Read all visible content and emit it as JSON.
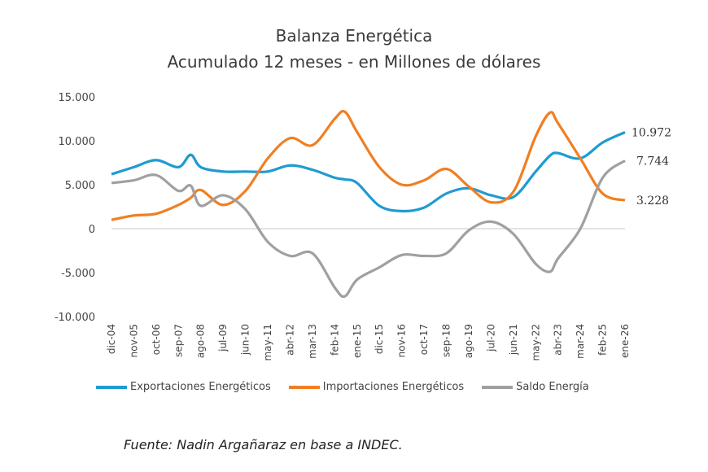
{
  "chart_data": {
    "type": "line",
    "title": "Balanza Energética",
    "subtitle": "Acumulado 12 meses - en Millones de dólares",
    "ylim": [
      -10000,
      15000
    ],
    "yticks": [
      15000,
      10000,
      5000,
      0,
      -5000,
      -10000
    ],
    "ytick_labels": [
      "15.000",
      "10.000",
      "5.000",
      "0",
      "-5.000",
      "-10.000"
    ],
    "xtick_dates": [
      "2004-12",
      "2005-11",
      "2006-10",
      "2007-09",
      "2008-08",
      "2009-07",
      "2010-06",
      "2011-05",
      "2012-04",
      "2013-03",
      "2014-02",
      "2015-01",
      "2015-12",
      "2016-11",
      "2017-10",
      "2018-09",
      "2019-08",
      "2020-07",
      "2021-06",
      "2022-05",
      "2023-04",
      "2024-03",
      "2025-02",
      "2026-01"
    ],
    "xtick_labels": [
      "dic-04",
      "nov-05",
      "oct-06",
      "sep-07",
      "ago-08",
      "jul-09",
      "jun-10",
      "may-11",
      "abr-12",
      "mar-13",
      "feb-14",
      "ene-15",
      "dic-15",
      "nov-16",
      "oct-17",
      "sep-18",
      "ago-19",
      "jul-20",
      "jun-21",
      "may-22",
      "abr-23",
      "mar-24",
      "feb-25",
      "ene-26"
    ],
    "grid": false,
    "legend": "bottom",
    "x": [
      "2004-12",
      "2005-11",
      "2006-10",
      "2007-09",
      "2008-03",
      "2008-08",
      "2009-07",
      "2010-06",
      "2011-05",
      "2012-04",
      "2013-03",
      "2014-02",
      "2014-07",
      "2015-01",
      "2015-12",
      "2016-11",
      "2017-10",
      "2018-09",
      "2019-08",
      "2020-07",
      "2021-06",
      "2022-05",
      "2022-12",
      "2023-04",
      "2024-03",
      "2025-02",
      "2026-01"
    ],
    "series": [
      {
        "name": "Exportaciones Energéticos",
        "color": "#1f9bd1",
        "end_label": "10.972",
        "values": [
          6200,
          7000,
          7800,
          7000,
          8400,
          7000,
          6500,
          6500,
          6500,
          7200,
          6700,
          5800,
          5600,
          5200,
          2600,
          2000,
          2400,
          4000,
          4600,
          3800,
          3600,
          6500,
          8300,
          8600,
          8000,
          9800,
          10972
        ]
      },
      {
        "name": "Importaciones Energéticos",
        "color": "#f07f22",
        "end_label": "3.228",
        "values": [
          1000,
          1500,
          1700,
          2700,
          3500,
          4400,
          2700,
          4300,
          8000,
          10300,
          9500,
          12500,
          13300,
          11000,
          7000,
          5000,
          5500,
          6800,
          4800,
          3000,
          4200,
          10500,
          13200,
          12000,
          8000,
          4000,
          3228
        ]
      },
      {
        "name": "Saldo Energía",
        "color": "#a0a0a0",
        "end_label": "7.744",
        "values": [
          5200,
          5500,
          6100,
          4300,
          4900,
          2600,
          3800,
          2200,
          -1500,
          -3100,
          -2800,
          -6700,
          -7700,
          -5800,
          -4400,
          -3000,
          -3100,
          -2800,
          -200,
          800,
          -600,
          -4000,
          -4900,
          -3400,
          0,
          5800,
          7744
        ]
      }
    ]
  },
  "source": "Fuente: Nadin Argañaraz en base a INDEC."
}
